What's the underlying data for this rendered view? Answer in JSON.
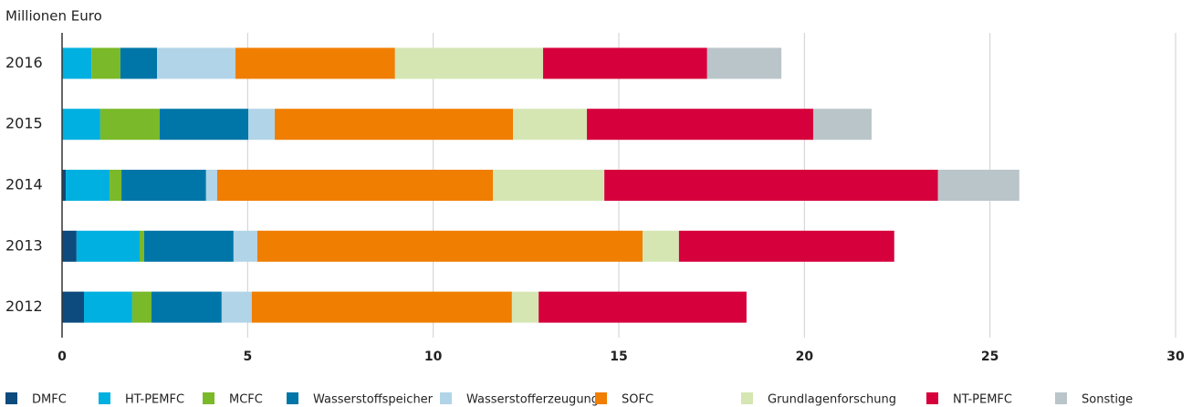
{
  "chart_data": {
    "type": "stacked_barh",
    "subtitle": "Millionen Euro",
    "categories": [
      "2016",
      "2015",
      "2014",
      "2013",
      "2012"
    ],
    "series": [
      {
        "name": "DMFC",
        "color": "#0d4a7d",
        "values": [
          0,
          0,
          0.1,
          0.39,
          0.59
        ]
      },
      {
        "name": "HT-PEMFC",
        "color": "#00b0e0",
        "values": [
          0.79,
          1.03,
          1.18,
          1.7,
          1.3
        ]
      },
      {
        "name": "MCFC",
        "color": "#7ab929",
        "values": [
          0.78,
          1.6,
          0.32,
          0.12,
          0.52
        ]
      },
      {
        "name": "Wasserstoffspeicher",
        "color": "#0076a8",
        "values": [
          0.99,
          2.39,
          2.28,
          2.41,
          1.89
        ]
      },
      {
        "name": "Wasserstofferzeugung",
        "color": "#b1d4e8",
        "values": [
          2.11,
          0.71,
          0.3,
          0.64,
          0.81
        ]
      },
      {
        "name": "SOFC",
        "color": "#f07e00",
        "values": [
          4.3,
          6.42,
          7.43,
          10.38,
          7.01
        ]
      },
      {
        "name": "Grundlagenforschung",
        "color": "#d5e6b3",
        "values": [
          3.99,
          1.99,
          3.0,
          0.98,
          0.72
        ]
      },
      {
        "name": "NT-PEMFC",
        "color": "#d6003c",
        "values": [
          4.42,
          6.1,
          8.99,
          5.8,
          5.6
        ]
      },
      {
        "name": "Sonstige",
        "color": "#bac5ca",
        "values": [
          2.0,
          1.57,
          2.19,
          0,
          0
        ]
      }
    ],
    "xlim": [
      0,
      30
    ],
    "xticks": [
      0,
      5,
      10,
      15,
      20,
      25,
      30
    ],
    "grid": true
  }
}
